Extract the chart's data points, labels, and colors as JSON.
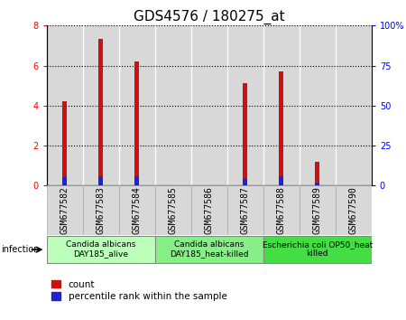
{
  "title": "GDS4576 / 180275_at",
  "samples": [
    "GSM677582",
    "GSM677583",
    "GSM677584",
    "GSM677585",
    "GSM677586",
    "GSM677587",
    "GSM677588",
    "GSM677589",
    "GSM677590"
  ],
  "count_values": [
    4.2,
    7.35,
    6.2,
    0.0,
    0.0,
    5.1,
    5.7,
    1.2,
    0.0
  ],
  "percentile_values": [
    0.4,
    0.48,
    0.48,
    0.0,
    0.0,
    0.32,
    0.48,
    0.16,
    0.0
  ],
  "bar_color_count": "#cc1111",
  "bar_color_pct": "#2222cc",
  "ylim_left": [
    0,
    8
  ],
  "ylim_right": [
    0,
    100
  ],
  "yticks_left": [
    0,
    2,
    4,
    6,
    8
  ],
  "yticks_right": [
    0,
    25,
    50,
    75,
    100
  ],
  "ytick_labels_right": [
    "0",
    "25",
    "50",
    "75",
    "100%"
  ],
  "groups": [
    {
      "label": "Candida albicans\nDAY185_alive",
      "start": 0,
      "end": 3,
      "color": "#bbffbb"
    },
    {
      "label": "Candida albicans\nDAY185_heat-killed",
      "start": 3,
      "end": 6,
      "color": "#88ee88"
    },
    {
      "label": "Escherichia coli OP50_heat\nkilled",
      "start": 6,
      "end": 9,
      "color": "#44dd44"
    }
  ],
  "infection_label": "infection",
  "legend_count": "count",
  "legend_pct": "percentile rank within the sample",
  "bar_width": 0.12,
  "cell_color": "#d8d8d8",
  "tick_label_fontsize": 7,
  "title_fontsize": 11,
  "group_label_fontsize": 6.5
}
